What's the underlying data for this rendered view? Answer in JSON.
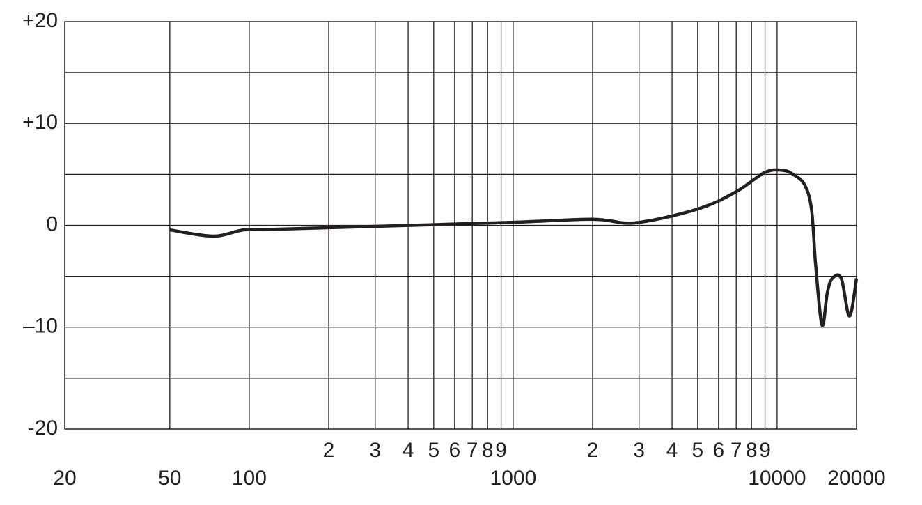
{
  "chart_data": {
    "type": "line",
    "xscale": "log",
    "x": [
      50,
      73,
      95,
      120,
      300,
      1000,
      2000,
      2900,
      5000,
      7000,
      9000,
      10500,
      11500,
      12700,
      13500,
      14000,
      14800,
      15500,
      16200,
      17500,
      18800,
      20000
    ],
    "series": [
      {
        "color": "#231f20",
        "values": [
          -0.45,
          -1.06,
          -0.45,
          -0.4,
          -0.1,
          0.3,
          0.6,
          0.25,
          1.6,
          3.3,
          5.2,
          5.4,
          5.0,
          4.0,
          1.6,
          -3.9,
          -9.8,
          -6.6,
          -5.2,
          -5.2,
          -8.9,
          -5.2
        ]
      }
    ],
    "xlim": [
      20,
      20000
    ],
    "xticks": [
      20,
      50,
      100,
      1000,
      10000,
      20000
    ],
    "xticks_minor": [
      {
        "value": 200,
        "label": "2"
      },
      {
        "value": 300,
        "label": "3"
      },
      {
        "value": 400,
        "label": "4"
      },
      {
        "value": 500,
        "label": "5"
      },
      {
        "value": 600,
        "label": "6"
      },
      {
        "value": 700,
        "label": "7"
      },
      {
        "value": 800,
        "label": "8"
      },
      {
        "value": 900,
        "label": "9"
      },
      {
        "value": 2000,
        "label": "2"
      },
      {
        "value": 3000,
        "label": "3"
      },
      {
        "value": 4000,
        "label": "4"
      },
      {
        "value": 5000,
        "label": "5"
      },
      {
        "value": 6000,
        "label": "6"
      },
      {
        "value": 7000,
        "label": "7"
      },
      {
        "value": 8000,
        "label": "8"
      },
      {
        "value": 9000,
        "label": "9"
      }
    ],
    "ylim": [
      -20,
      20
    ],
    "yticks": [
      {
        "value": 20,
        "label": "+20"
      },
      {
        "value": 10,
        "label": "+10"
      },
      0,
      {
        "value": -10,
        "label": "–10"
      },
      -20
    ],
    "yticks_minor": [
      15,
      5,
      -5,
      -15
    ],
    "grid": true
  }
}
